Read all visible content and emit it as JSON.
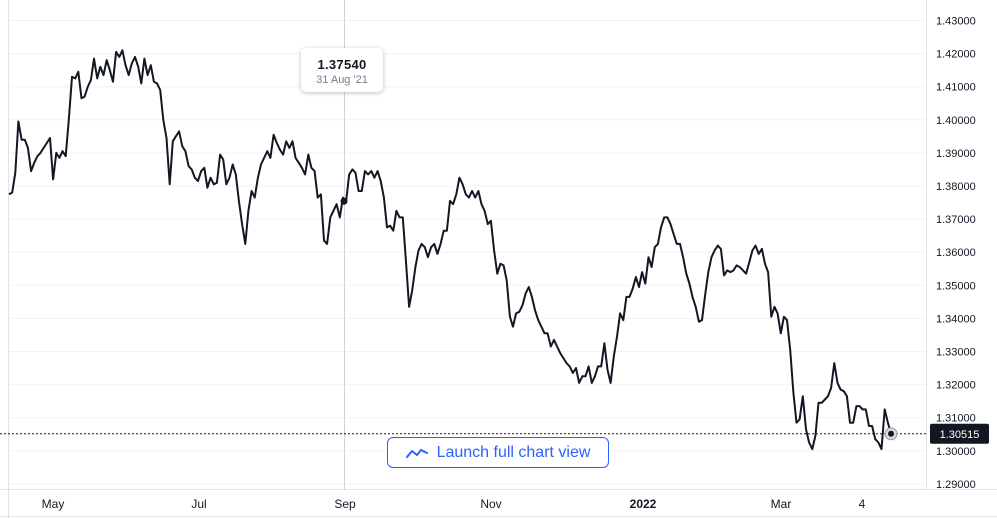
{
  "chart_data": {
    "type": "line",
    "x_ticks": [
      "May",
      "Jul",
      "Sep",
      "Nov",
      "2022",
      "Mar",
      "4"
    ],
    "y_ticks": [
      "1.43000",
      "1.42000",
      "1.41000",
      "1.40000",
      "1.39000",
      "1.38000",
      "1.37000",
      "1.36000",
      "1.35000",
      "1.34000",
      "1.33000",
      "1.32000",
      "1.31000",
      "1.30000",
      "1.29000"
    ],
    "ylim": [
      1.2875,
      1.4335
    ],
    "series": [
      {
        "values": [
          1.3775,
          1.378,
          1.384,
          1.3995,
          1.394,
          1.394,
          1.3915,
          1.3845,
          1.387,
          1.389,
          1.39,
          1.3915,
          1.393,
          1.3945,
          1.382,
          1.39,
          1.3885,
          1.3905,
          1.389,
          1.4,
          1.413,
          1.4125,
          1.4145,
          1.4065,
          1.407,
          1.41,
          1.412,
          1.4185,
          1.4125,
          1.416,
          1.4135,
          1.418,
          1.415,
          1.4115,
          1.4205,
          1.419,
          1.421,
          1.4165,
          1.4135,
          1.417,
          1.419,
          1.416,
          1.411,
          1.4185,
          1.4135,
          1.4165,
          1.4115,
          1.411,
          1.409,
          1.4,
          1.3945,
          1.3805,
          1.3935,
          1.395,
          1.3965,
          1.392,
          1.3905,
          1.386,
          1.385,
          1.3825,
          1.3815,
          1.3845,
          1.3855,
          1.3795,
          1.3825,
          1.3805,
          1.381,
          1.3895,
          1.388,
          1.3805,
          1.3825,
          1.3865,
          1.3835,
          1.3755,
          1.3685,
          1.3625,
          1.3725,
          1.3785,
          1.3765,
          1.3825,
          1.3865,
          1.3885,
          1.3905,
          1.3885,
          1.3955,
          1.393,
          1.391,
          1.3895,
          1.3935,
          1.3915,
          1.3935,
          1.3885,
          1.387,
          1.3855,
          1.3835,
          1.3895,
          1.3855,
          1.3845,
          1.3765,
          1.3775,
          1.3635,
          1.3625,
          1.3705,
          1.3725,
          1.3745,
          1.3705,
          1.3765,
          1.3754,
          1.3835,
          1.385,
          1.384,
          1.3785,
          1.3785,
          1.3845,
          1.3835,
          1.3845,
          1.3825,
          1.3845,
          1.3815,
          1.3765,
          1.3675,
          1.368,
          1.3665,
          1.3725,
          1.3705,
          1.3705,
          1.3575,
          1.3435,
          1.3485,
          1.3555,
          1.3605,
          1.3625,
          1.3615,
          1.3585,
          1.3615,
          1.3625,
          1.3595,
          1.3625,
          1.3665,
          1.3665,
          1.3755,
          1.3745,
          1.3775,
          1.3825,
          1.3805,
          1.3775,
          1.3765,
          1.3785,
          1.3765,
          1.3785,
          1.3745,
          1.3725,
          1.3685,
          1.3695,
          1.3605,
          1.3535,
          1.3565,
          1.356,
          1.3515,
          1.3405,
          1.3375,
          1.3415,
          1.342,
          1.344,
          1.3475,
          1.3495,
          1.3465,
          1.3425,
          1.3395,
          1.3375,
          1.3355,
          1.3355,
          1.3315,
          1.3335,
          1.3315,
          1.3295,
          1.328,
          1.3265,
          1.3255,
          1.3235,
          1.325,
          1.3205,
          1.3225,
          1.3225,
          1.3255,
          1.3205,
          1.3225,
          1.3255,
          1.3255,
          1.3325,
          1.3245,
          1.3205,
          1.3285,
          1.3345,
          1.3415,
          1.3395,
          1.3465,
          1.3465,
          1.349,
          1.3525,
          1.3495,
          1.354,
          1.3505,
          1.3585,
          1.3555,
          1.3615,
          1.3625,
          1.3675,
          1.3705,
          1.3705,
          1.3685,
          1.3655,
          1.3625,
          1.3625,
          1.3585,
          1.3535,
          1.3505,
          1.3465,
          1.3435,
          1.339,
          1.3395,
          1.347,
          1.354,
          1.3585,
          1.3605,
          1.362,
          1.361,
          1.353,
          1.3545,
          1.354,
          1.3545,
          1.356,
          1.3555,
          1.3545,
          1.3535,
          1.357,
          1.3605,
          1.362,
          1.3595,
          1.361,
          1.3565,
          1.354,
          1.3405,
          1.3435,
          1.3415,
          1.3355,
          1.3405,
          1.3395,
          1.3305,
          1.3175,
          1.3085,
          1.3095,
          1.3165,
          1.3065,
          1.3025,
          1.3005,
          1.3045,
          1.3145,
          1.3145,
          1.3155,
          1.3165,
          1.319,
          1.3265,
          1.3205,
          1.3185,
          1.318,
          1.3165,
          1.3085,
          1.3085,
          1.3135,
          1.3135,
          1.3125,
          1.3125,
          1.3075,
          1.3075,
          1.3035,
          1.3025,
          1.3005,
          1.3125,
          1.3085,
          1.30515
        ]
      }
    ],
    "last_value": "1.30515",
    "tooltip": {
      "value": "1.37540",
      "date": "31 Aug '21"
    }
  },
  "launch_button": {
    "label": "Launch full chart view"
  },
  "colors": {
    "line": "#131722",
    "accent": "#2962ff",
    "badge": "#131722"
  }
}
